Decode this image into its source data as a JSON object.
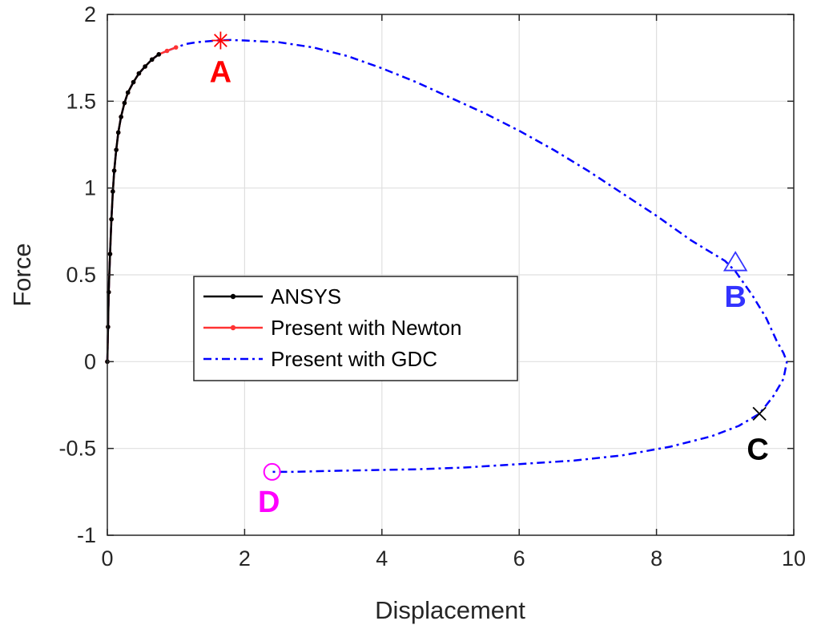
{
  "chart_data": {
    "type": "line",
    "xlabel": "Displacement",
    "ylabel": "Force",
    "xlim": [
      0,
      10
    ],
    "ylim": [
      -1,
      2
    ],
    "xticks": [
      0,
      2,
      4,
      6,
      8,
      10
    ],
    "yticks": [
      -1,
      -0.5,
      0,
      0.5,
      1,
      1.5,
      2
    ],
    "xtick_labels": [
      "0",
      "2",
      "4",
      "6",
      "8",
      "10"
    ],
    "ytick_labels": [
      "-1",
      "-0.5",
      "0",
      "0.5",
      "1",
      "1.5",
      "2"
    ],
    "grid": true,
    "legend_position": "center-left",
    "series": [
      {
        "name": "ANSYS",
        "color": "#000000",
        "style": "solid-dot-markers",
        "x": [
          0,
          0.01,
          0.02,
          0.04,
          0.06,
          0.08,
          0.1,
          0.13,
          0.16,
          0.2,
          0.25,
          0.3,
          0.38,
          0.46,
          0.55,
          0.65,
          0.75
        ],
        "y": [
          0,
          0.2,
          0.4,
          0.62,
          0.82,
          0.98,
          1.1,
          1.22,
          1.32,
          1.41,
          1.49,
          1.55,
          1.61,
          1.66,
          1.7,
          1.74,
          1.77
        ]
      },
      {
        "name": "Present with Newton",
        "color": "#ff3333",
        "style": "solid-dot-markers",
        "x": [
          0,
          0.01,
          0.02,
          0.04,
          0.06,
          0.08,
          0.1,
          0.13,
          0.16,
          0.2,
          0.25,
          0.3,
          0.38,
          0.46,
          0.55,
          0.65,
          0.75,
          0.87,
          1.0
        ],
        "y": [
          0,
          0.2,
          0.4,
          0.62,
          0.82,
          0.98,
          1.1,
          1.22,
          1.32,
          1.41,
          1.49,
          1.55,
          1.61,
          1.66,
          1.7,
          1.74,
          1.77,
          1.79,
          1.81
        ]
      },
      {
        "name": "Present with GDC",
        "color": "#0000ff",
        "style": "dash-dot",
        "x": [
          0,
          0.01,
          0.02,
          0.04,
          0.06,
          0.08,
          0.1,
          0.13,
          0.16,
          0.2,
          0.25,
          0.3,
          0.38,
          0.46,
          0.55,
          0.65,
          0.75,
          0.87,
          1.0,
          1.15,
          1.3,
          1.45,
          1.6,
          1.8,
          2.0,
          2.5,
          3.0,
          3.5,
          4.0,
          4.5,
          5.0,
          5.5,
          6.0,
          6.5,
          7.0,
          7.5,
          8.0,
          8.5,
          9.0,
          9.15,
          9.4,
          9.6,
          9.75,
          9.85,
          9.9,
          9.85,
          9.7,
          9.5,
          9.2,
          8.8,
          8.2,
          7.5,
          6.8,
          6.0,
          5.2,
          4.5,
          3.8,
          3.2,
          2.7,
          2.4
        ],
        "y": [
          0,
          0.2,
          0.4,
          0.62,
          0.82,
          0.98,
          1.1,
          1.22,
          1.32,
          1.41,
          1.49,
          1.55,
          1.61,
          1.66,
          1.7,
          1.74,
          1.77,
          1.79,
          1.81,
          1.83,
          1.84,
          1.845,
          1.85,
          1.853,
          1.85,
          1.84,
          1.81,
          1.76,
          1.69,
          1.61,
          1.52,
          1.43,
          1.33,
          1.22,
          1.1,
          0.97,
          0.84,
          0.7,
          0.58,
          0.52,
          0.38,
          0.25,
          0.12,
          0.05,
          0,
          -0.1,
          -0.2,
          -0.3,
          -0.37,
          -0.43,
          -0.49,
          -0.54,
          -0.57,
          -0.59,
          -0.61,
          -0.62,
          -0.625,
          -0.63,
          -0.635,
          -0.635
        ]
      }
    ],
    "markers": [
      {
        "label": "A",
        "x": 1.65,
        "y": 1.85,
        "shape": "asterisk",
        "color": "#ff0000",
        "label_color": "#ff0000"
      },
      {
        "label": "B",
        "x": 9.15,
        "y": 0.57,
        "shape": "triangle",
        "color": "#3333ff",
        "label_color": "#3333ff"
      },
      {
        "label": "C",
        "x": 9.5,
        "y": -0.3,
        "shape": "cross",
        "color": "#000000",
        "label_color": "#000000"
      },
      {
        "label": "D",
        "x": 2.4,
        "y": -0.635,
        "shape": "circle",
        "color": "#ff00ff",
        "label_color": "#ff00ff"
      }
    ]
  }
}
